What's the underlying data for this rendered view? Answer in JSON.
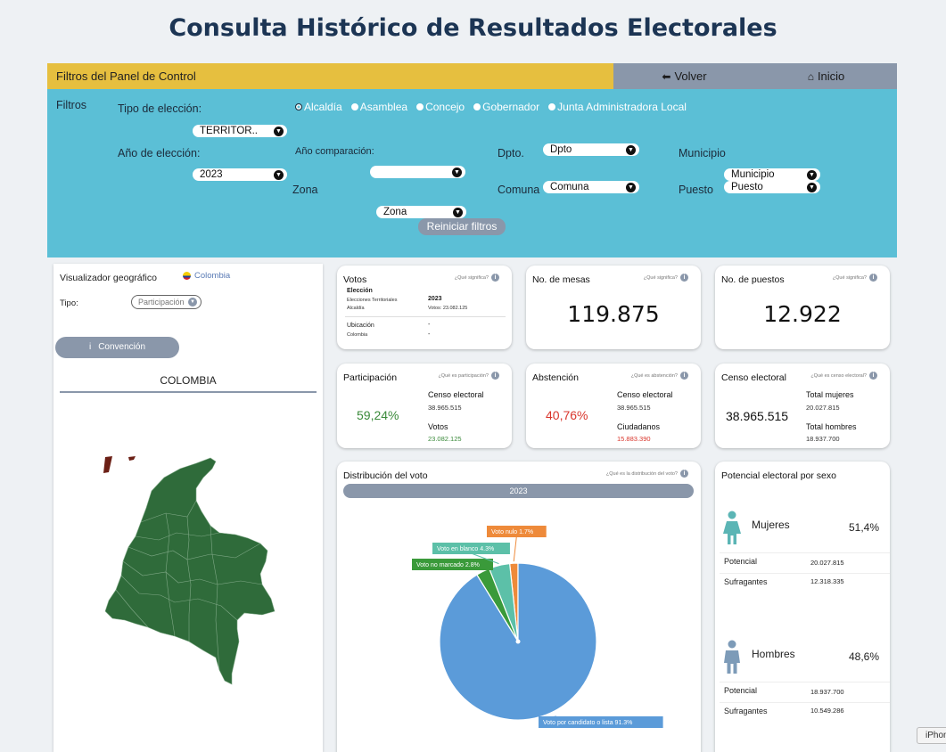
{
  "page": {
    "title": "Consulta Histórico de Resultados Electorales"
  },
  "topbar": {
    "panel_label": "Filtros del Panel de Control",
    "back_label": "Volver",
    "home_label": "Inicio"
  },
  "filters": {
    "section_label": "Filtros",
    "tipo_label": "Tipo de elección:",
    "tipo_options": [
      "Alcaldía",
      "Asamblea",
      "Concejo",
      "Gobernador",
      "Junta Administradora Local"
    ],
    "tipo_selected": "Alcaldía",
    "territorio_value": "TERRITOR..",
    "anio_label": "Año de elección:",
    "anio_value": "2023",
    "comparacion_label": "Año comparación:",
    "comparacion_value": "",
    "zona_label": "Zona",
    "zona_value": "Zona",
    "dpto_label": "Dpto.",
    "dpto_value": "Dpto",
    "comuna_label": "Comuna",
    "comuna_value": "Comuna",
    "municipio_label": "Municipio",
    "municipio_value": "Municipio",
    "puesto_label": "Puesto",
    "puesto_value": "Puesto",
    "reset_label": "Reiniciar filtros"
  },
  "geo": {
    "title": "Visualizador geográfico",
    "country": "Colombia",
    "tipo_label": "Tipo:",
    "tipo_value": "Participación",
    "convention_label": "Convención",
    "map_title": "COLOMBIA",
    "map_color": "#2f6b3a"
  },
  "votos": {
    "title": "Votos",
    "info": "¿Qué significa?",
    "eleccion_label": "Elección",
    "eleccion_type": "Elecciones Territoriales",
    "eleccion_sub": "Alcaldía",
    "year": "2023",
    "votos_line": "Votos: 23.082.125",
    "ubicacion_label": "Ubicación",
    "ubicacion_value": "Colombia",
    "dash1": "-",
    "dash2": "-"
  },
  "mesas": {
    "title": "No. de mesas",
    "info": "¿Qué significa?",
    "value": "119.875"
  },
  "puestos": {
    "title": "No. de puestos",
    "info": "¿Qué significa?",
    "value": "12.922"
  },
  "participacion": {
    "title": "Participación",
    "info": "¿Qué es participación?",
    "pct": "59,24%",
    "pct_color": "#3a8a3a",
    "censo_label": "Censo electoral",
    "censo_value": "38.965.515",
    "votos_label": "Votos",
    "votos_value": "23.082.125"
  },
  "abstencion": {
    "title": "Abstención",
    "info": "¿Qué es abstención?",
    "pct": "40,76%",
    "pct_color": "#d9352b",
    "censo_label": "Censo electoral",
    "censo_value": "38.965.515",
    "ciud_label": "Ciudadanos",
    "ciud_value": "15.883.390"
  },
  "censo": {
    "title": "Censo electoral",
    "info": "¿Qué es censo electoral?",
    "value": "38.965.515",
    "mujeres_label": "Total mujeres",
    "mujeres_value": "20.027.815",
    "hombres_label": "Total hombres",
    "hombres_value": "18.937.700"
  },
  "distribucion": {
    "title": "Distribución del voto",
    "info": "¿Qué es la distribución del voto?",
    "year": "2023"
  },
  "chart_data": {
    "type": "pie",
    "title": "Distribución del voto",
    "slices": [
      {
        "label": "Voto por candidato o lista",
        "value": 91.3,
        "display": "Voto por candidato o lista 91.3%",
        "color": "#5b9bd9"
      },
      {
        "label": "Voto no marcado",
        "value": 2.8,
        "display": "Voto no marcado 2.8%",
        "color": "#3a9a3a"
      },
      {
        "label": "Voto en blanco",
        "value": 4.3,
        "display": "Voto en blanco 4.3%",
        "color": "#5cc0a8"
      },
      {
        "label": "Voto nulo",
        "value": 1.7,
        "display": "Voto nulo 1.7%",
        "color": "#ee8a3a"
      }
    ]
  },
  "potencial": {
    "title": "Potencial electoral por sexo",
    "mujeres": {
      "label": "Mujeres",
      "pct": "51,4%",
      "potencial_label": "Potencial",
      "potencial_value": "20.027.815",
      "sufragantes_label": "Sufragantes",
      "sufragantes_value": "12.318.335",
      "color": "#5bb5b5"
    },
    "hombres": {
      "label": "Hombres",
      "pct": "48,6%",
      "potencial_label": "Potencial",
      "potencial_value": "18.937.700",
      "sufragantes_label": "Sufragantes",
      "sufragantes_value": "10.549.286",
      "color": "#7d9bb8"
    }
  },
  "device_tag": "iPhone"
}
